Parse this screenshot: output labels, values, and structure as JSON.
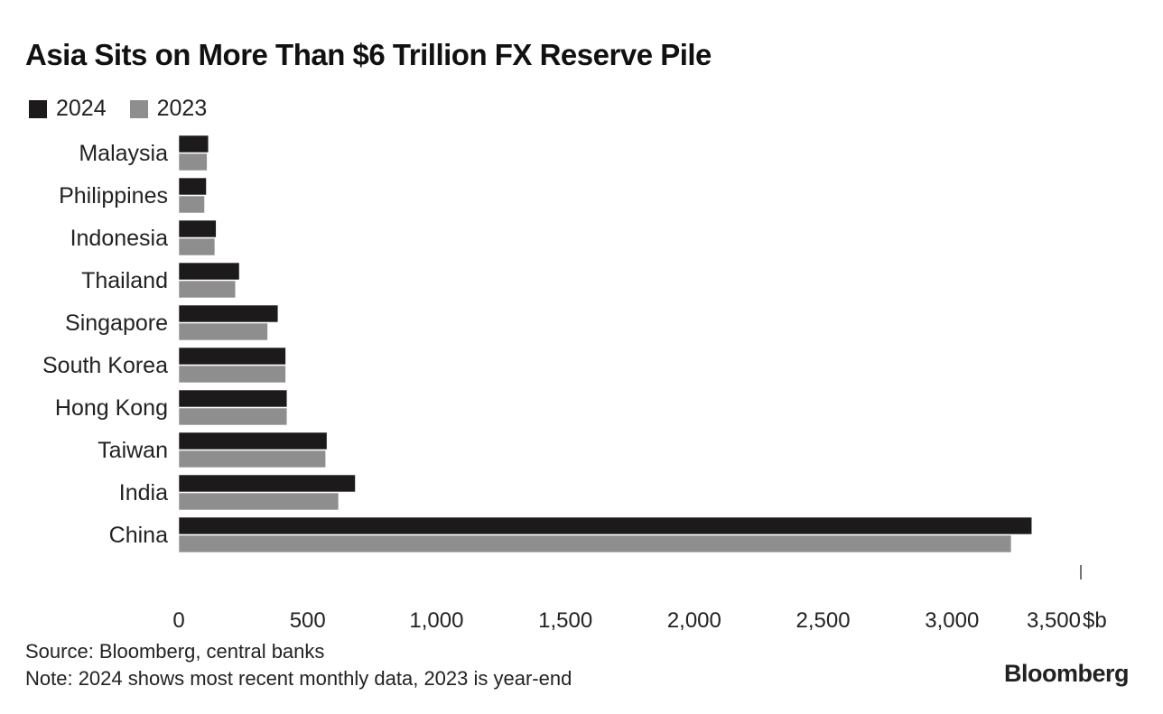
{
  "chart_data": {
    "type": "bar",
    "orientation": "horizontal",
    "title": "Asia Sits on More Than $6 Trillion FX Reserve Pile",
    "categories": [
      "Malaysia",
      "Philippines",
      "Indonesia",
      "Thailand",
      "Singapore",
      "South Korea",
      "Hong Kong",
      "Taiwan",
      "India",
      "China"
    ],
    "series": [
      {
        "name": "2024",
        "color": "#1c1a1b",
        "values": [
          115,
          107,
          145,
          235,
          385,
          415,
          420,
          575,
          685,
          3310
        ]
      },
      {
        "name": "2023",
        "color": "#8f8e8f",
        "values": [
          110,
          100,
          140,
          220,
          345,
          415,
          420,
          570,
          620,
          3230
        ]
      }
    ],
    "xlim": [
      0,
      3500
    ],
    "xticks": [
      0,
      500,
      1000,
      1500,
      2000,
      2500,
      3000,
      3500
    ],
    "xtick_labels": [
      "0",
      "500",
      "1,000",
      "1,500",
      "2,000",
      "2,500",
      "3,000",
      "3,500"
    ],
    "unit_label": "$b",
    "legend_position": "top-left",
    "grid": false
  },
  "footer": {
    "source": "Source: Bloomberg, central banks",
    "note": "Note: 2024 shows most recent monthly data, 2023 is year-end",
    "brand": "Bloomberg"
  }
}
